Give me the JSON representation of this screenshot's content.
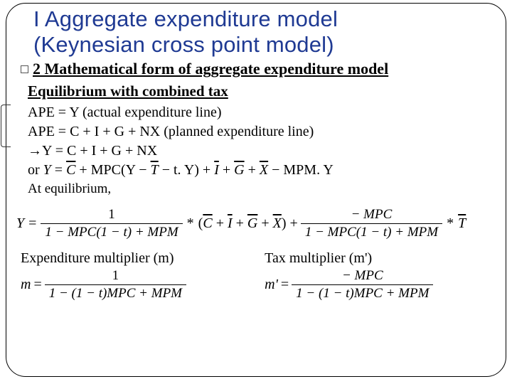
{
  "title_line1": "I Aggregate expenditure model",
  "title_line2": "(Keynesian cross point model)",
  "section_num": "2",
  "section_heading": "Mathematical form of aggregate expenditure model",
  "sub_heading": "Equilibrium with combined tax",
  "line1": "APE = Y (actual expenditure line)",
  "line2": "APE  =  C + I + G + NX (planned expenditure line)",
  "line3": "→Y  =  C + I + G + NX",
  "line4_pre": "or ",
  "line4_Y": "Y",
  "line4_eq": " = ",
  "line4_C": "C",
  "line4_plus": " + MPC(Y − ",
  "line4_T": "T",
  "line4_after_T": " − t. Y) + ",
  "line4_I": "I",
  "line4_p1": " + ",
  "line4_G": "G",
  "line4_p2": " + ",
  "line4_X": "X",
  "line4_end": " − MPM. Y",
  "at_eq": "At equilibrium,",
  "big_eq": {
    "lhs": "Y",
    "eq": "=",
    "frac1_num": "1",
    "frac1_den": "1 − MPC(1 − t) + MPM",
    "star": "*",
    "paren_content_pre": "(",
    "C": "C",
    "I": "I",
    "G": "G",
    "X": "X",
    "plus": " + ",
    "paren_close": ") +",
    "frac2_num": "− MPC",
    "frac2_den": "1 − MPC(1 − t) + MPM",
    "star2": "*",
    "T": "T"
  },
  "mult": {
    "left_label": "Expenditure multiplier (m)",
    "right_label": "Tax multiplier (m')",
    "m_lhs": "m",
    "mp_lhs": "m'",
    "eq": "=",
    "left_num": "1",
    "left_den": "1 − (1 − t)MPC + MPM",
    "right_num": "− MPC",
    "right_den": "1 − (1 − t)MPC + MPM"
  }
}
